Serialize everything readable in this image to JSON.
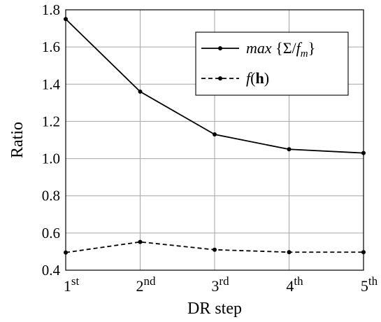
{
  "chart_data": {
    "type": "line",
    "xlabel": "DR step",
    "ylabel": "Ratio",
    "categories": [
      {
        "base": "1",
        "sup": "st"
      },
      {
        "base": "2",
        "sup": "nd"
      },
      {
        "base": "3",
        "sup": "rd"
      },
      {
        "base": "4",
        "sup": "th"
      },
      {
        "base": "5",
        "sup": "th"
      }
    ],
    "ylim": [
      0.4,
      1.8
    ],
    "yticks": [
      "0.4",
      "0.6",
      "0.8",
      "1.0",
      "1.2",
      "1.4",
      "1.6",
      "1.8"
    ],
    "grid": true,
    "legend_position": "top-right",
    "series": [
      {
        "name": "max {Σ/f_m}",
        "legend": [
          {
            "text": "max",
            "style": "it"
          },
          {
            "text": " {Σ/",
            "style": "normal"
          },
          {
            "text": "f",
            "style": "it"
          },
          {
            "text": "m",
            "style": "it-sub"
          },
          {
            "text": "}",
            "style": "normal"
          }
        ],
        "line_style": "solid",
        "color": "#000000",
        "values": [
          1.75,
          1.36,
          1.13,
          1.05,
          1.03
        ]
      },
      {
        "name": "f(h)",
        "legend": [
          {
            "text": "f",
            "style": "it"
          },
          {
            "text": "(",
            "style": "normal"
          },
          {
            "text": "h",
            "style": "bold"
          },
          {
            "text": ")",
            "style": "normal"
          }
        ],
        "line_style": "dashed",
        "color": "#000000",
        "values": [
          0.495,
          0.552,
          0.51,
          0.497,
          0.497
        ]
      }
    ]
  }
}
